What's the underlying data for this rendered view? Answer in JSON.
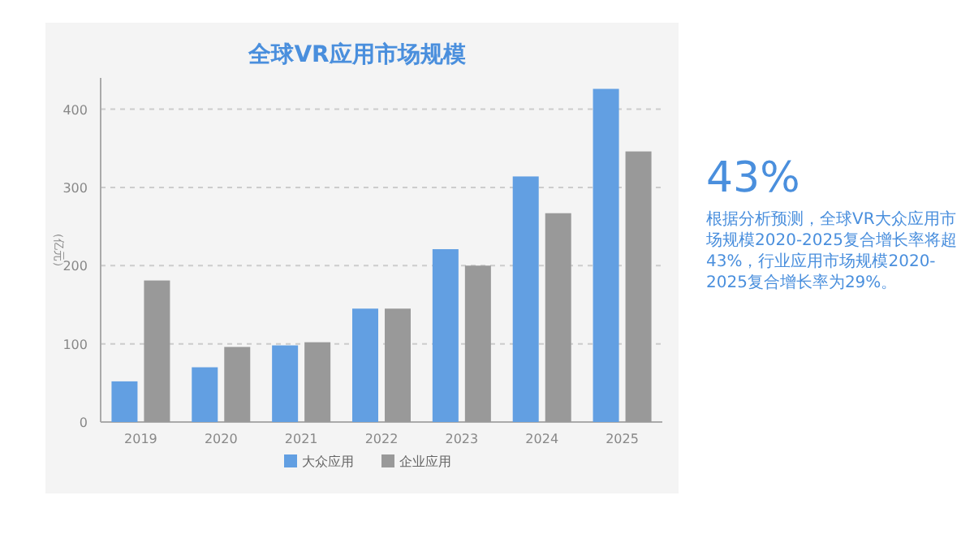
{
  "chart_data": {
    "type": "bar",
    "title": "全球VR应用市场规模",
    "ylabel": "（亿元）",
    "categories": [
      "2019",
      "2020",
      "2021",
      "2022",
      "2023",
      "2024",
      "2025"
    ],
    "series": [
      {
        "name": "大众应用",
        "color": "#629fe2",
        "values": [
          52,
          70,
          98,
          145,
          221,
          314,
          426
        ]
      },
      {
        "name": "企业应用",
        "color": "#999999",
        "values": [
          181,
          96,
          102,
          145,
          200,
          267,
          346
        ]
      }
    ],
    "ylim": [
      0,
      440
    ],
    "yticks": [
      0,
      100,
      200,
      300,
      400
    ],
    "grid": "y",
    "legend": "bottom",
    "annotations": [
      "43%",
      "根据分析预测，全球VR大众应用市场规模2020-2025复合增长率将超43%，行业应用市场规模2020-2025复合增长率为29%。"
    ]
  }
}
